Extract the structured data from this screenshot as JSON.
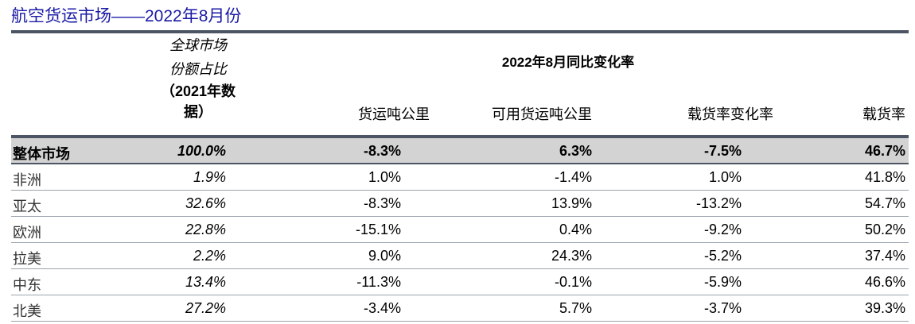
{
  "title": "航空货运市场——2022年8月份",
  "header": {
    "share_line1": "全球市场",
    "share_line2": "份额占比",
    "share_line3": "（2021年数",
    "share_line4": "据）",
    "group_title": "2022年8月同比变化率",
    "columns": [
      "货运吨公里",
      "可用货运吨公里",
      "载货率变化率",
      "载货率"
    ]
  },
  "rows": [
    {
      "region": "整体市场",
      "share": "100.0%",
      "ctk": "-8.3%",
      "actk": "6.3%",
      "lf_change": "-7.5%",
      "lf": "46.7%"
    },
    {
      "region": "非洲",
      "share": "1.9%",
      "ctk": "1.0%",
      "actk": "-1.4%",
      "lf_change": "1.0%",
      "lf": "41.8%"
    },
    {
      "region": "亚太",
      "share": "32.6%",
      "ctk": "-8.3%",
      "actk": "13.9%",
      "lf_change": "-13.2%",
      "lf": "54.7%"
    },
    {
      "region": "欧洲",
      "share": "22.8%",
      "ctk": "-15.1%",
      "actk": "0.4%",
      "lf_change": "-9.2%",
      "lf": "50.2%"
    },
    {
      "region": "拉美",
      "share": "2.2%",
      "ctk": "9.0%",
      "actk": "24.3%",
      "lf_change": "-5.2%",
      "lf": "37.4%"
    },
    {
      "region": "中东",
      "share": "13.4%",
      "ctk": "-11.3%",
      "actk": "-0.1%",
      "lf_change": "-5.9%",
      "lf": "46.6%"
    },
    {
      "region": "北美",
      "share": "27.2%",
      "ctk": "-3.4%",
      "actk": "5.7%",
      "lf_change": "-3.7%",
      "lf": "39.3%"
    }
  ]
}
